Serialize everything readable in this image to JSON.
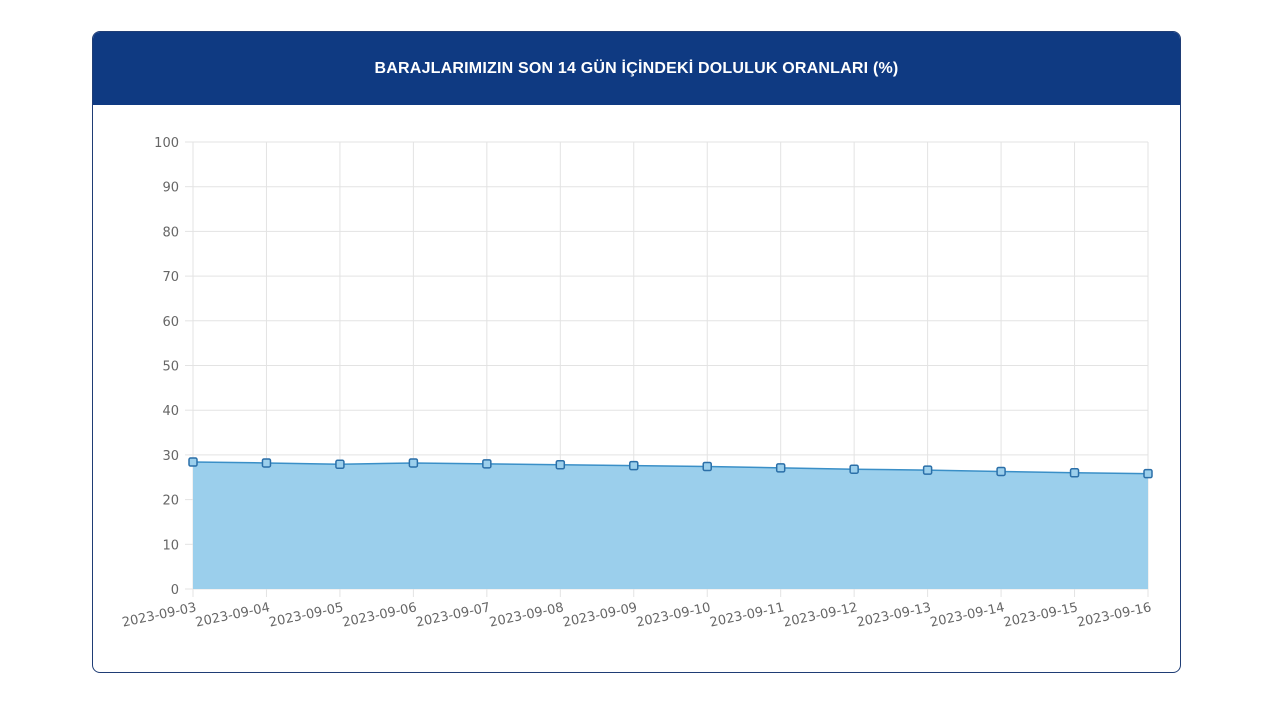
{
  "header": {
    "title": "BARAJLARIMIZIN SON 14 GÜN İÇİNDEKİ DOLULUK ORANLARI (%)"
  },
  "colors": {
    "header_bg": "#0f3a82",
    "line": "#3a8fc7",
    "fill": "#9bcfec",
    "grid": "#e3e3e3"
  },
  "chart_data": {
    "type": "area",
    "title": "BARAJLARIMIZIN SON 14 GÜN İÇİNDEKİ DOLULUK ORANLARI (%)",
    "xlabel": "",
    "ylabel": "",
    "ylim": [
      0,
      100
    ],
    "yticks": [
      0,
      10,
      20,
      30,
      40,
      50,
      60,
      70,
      80,
      90,
      100
    ],
    "grid": true,
    "legend": "none",
    "categories": [
      "2023-09-03",
      "2023-09-04",
      "2023-09-05",
      "2023-09-06",
      "2023-09-07",
      "2023-09-08",
      "2023-09-09",
      "2023-09-10",
      "2023-09-11",
      "2023-09-12",
      "2023-09-13",
      "2023-09-14",
      "2023-09-15",
      "2023-09-16"
    ],
    "values": [
      28.4,
      28.2,
      27.9,
      28.2,
      28.0,
      27.8,
      27.6,
      27.4,
      27.1,
      26.8,
      26.6,
      26.3,
      26.0,
      25.8
    ]
  }
}
